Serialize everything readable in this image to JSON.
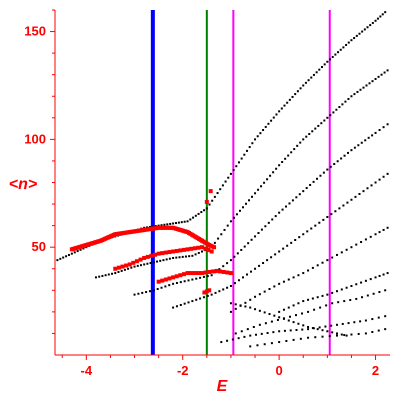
{
  "chart_data": {
    "type": "scatter",
    "xlabel": "E",
    "ylabel": "<n>",
    "xlim": [
      -4.65,
      2.3
    ],
    "ylim": [
      0,
      160
    ],
    "x_ticks": [
      -4,
      -2,
      0,
      2
    ],
    "y_ticks": [
      50,
      100,
      150
    ],
    "x_tick_labels": [
      "-4",
      "-2",
      "0",
      "2"
    ],
    "y_tick_labels": [
      "50",
      "100",
      "150"
    ],
    "grid": false,
    "colors": {
      "axis": "#ff0000",
      "labels": "#ff0000",
      "regular_points": "#000000",
      "highlighted_points": "#ff0000",
      "line_blue": "#0000ff",
      "line_green": "#008000",
      "line_magenta": "#ff00ff"
    },
    "vertical_lines": [
      {
        "x": -2.62,
        "color": "#0000ff",
        "style": "thick"
      },
      {
        "x": -1.5,
        "color": "#008000",
        "style": "medium"
      },
      {
        "x": -0.95,
        "color": "#ff00ff",
        "style": "medium"
      },
      {
        "x": 1.05,
        "color": "#ff00ff",
        "style": "medium"
      }
    ],
    "series": [
      {
        "color": "#000000",
        "marker": "dot",
        "curves": [
          {
            "points": [
              [
                -4.6,
                44
              ],
              [
                -4.3,
                47
              ],
              [
                -4.0,
                50
              ],
              [
                -3.7,
                53
              ],
              [
                -3.4,
                55
              ],
              [
                -3.1,
                57
              ],
              [
                -2.8,
                59
              ],
              [
                -2.5,
                60
              ],
              [
                -2.2,
                61
              ],
              [
                -1.9,
                62
              ],
              [
                -1.5,
                68
              ],
              [
                -1.0,
                84
              ],
              [
                -0.5,
                100
              ],
              [
                0.0,
                113
              ],
              [
                0.5,
                125
              ],
              [
                1.0,
                136
              ],
              [
                1.5,
                146
              ],
              [
                2.0,
                155
              ],
              [
                2.2,
                159
              ]
            ],
            "step": 0.055
          },
          {
            "points": [
              [
                -3.8,
                36
              ],
              [
                -3.4,
                38
              ],
              [
                -3.0,
                41
              ],
              [
                -2.6,
                43
              ],
              [
                -2.2,
                45
              ],
              [
                -1.8,
                46
              ],
              [
                -1.4,
                50
              ],
              [
                -1.0,
                62
              ],
              [
                -0.5,
                75
              ],
              [
                0.0,
                88
              ],
              [
                0.5,
                100
              ],
              [
                1.0,
                110
              ],
              [
                1.5,
                120
              ],
              [
                2.0,
                128
              ],
              [
                2.25,
                132
              ]
            ],
            "step": 0.065
          },
          {
            "points": [
              [
                -3.0,
                28
              ],
              [
                -2.6,
                30
              ],
              [
                -2.2,
                33
              ],
              [
                -1.8,
                35
              ],
              [
                -1.4,
                37
              ],
              [
                -1.0,
                44
              ],
              [
                -0.5,
                55
              ],
              [
                0.0,
                66
              ],
              [
                0.5,
                76
              ],
              [
                1.0,
                86
              ],
              [
                1.5,
                95
              ],
              [
                2.0,
                103
              ],
              [
                2.25,
                107
              ]
            ],
            "step": 0.075
          },
          {
            "points": [
              [
                -2.2,
                22
              ],
              [
                -1.8,
                25
              ],
              [
                -1.4,
                28
              ],
              [
                -1.0,
                32
              ],
              [
                -0.5,
                40
              ],
              [
                0.0,
                48
              ],
              [
                0.5,
                56
              ],
              [
                1.0,
                64
              ],
              [
                1.5,
                72
              ],
              [
                2.0,
                80
              ],
              [
                2.25,
                84
              ]
            ],
            "step": 0.085
          },
          {
            "points": [
              [
                -1.0,
                20
              ],
              [
                -0.5,
                27
              ],
              [
                0.0,
                33
              ],
              [
                0.5,
                38
              ],
              [
                1.0,
                44
              ],
              [
                1.5,
                50
              ],
              [
                2.0,
                56
              ],
              [
                2.25,
                59
              ]
            ],
            "step": 0.095
          },
          {
            "points": [
              [
                0.0,
                20
              ],
              [
                0.5,
                25
              ],
              [
                1.0,
                28
              ],
              [
                1.5,
                32
              ],
              [
                2.0,
                36
              ],
              [
                2.25,
                38
              ]
            ],
            "step": 0.1
          },
          {
            "points": [
              [
                -0.9,
                10
              ],
              [
                -0.4,
                14
              ],
              [
                0.1,
                17
              ],
              [
                0.6,
                20
              ],
              [
                1.1,
                24
              ],
              [
                1.6,
                26
              ],
              [
                2.2,
                30
              ]
            ],
            "step": 0.12
          },
          {
            "points": [
              [
                -1.2,
                6
              ],
              [
                -0.6,
                9
              ],
              [
                0.0,
                11
              ],
              [
                0.6,
                12
              ],
              [
                1.2,
                14
              ],
              [
                1.8,
                16
              ],
              [
                2.2,
                18
              ]
            ],
            "step": 0.13
          },
          {
            "points": [
              [
                -0.6,
                4
              ],
              [
                0.0,
                6
              ],
              [
                0.6,
                8
              ],
              [
                1.2,
                9
              ],
              [
                1.8,
                10
              ],
              [
                2.2,
                12
              ]
            ],
            "step": 0.14
          },
          {
            "points": [
              [
                -1.0,
                24
              ],
              [
                -0.6,
                22
              ],
              [
                -0.2,
                19
              ],
              [
                0.2,
                16
              ],
              [
                0.6,
                13
              ],
              [
                1.0,
                11
              ],
              [
                1.4,
                9
              ]
            ],
            "step": 0.1
          }
        ]
      },
      {
        "color": "#ff0000",
        "marker": "square",
        "curves": [
          {
            "points": [
              [
                -4.3,
                49
              ],
              [
                -4.0,
                51
              ],
              [
                -3.7,
                53
              ],
              [
                -3.4,
                56
              ],
              [
                -3.1,
                57
              ],
              [
                -2.8,
                58
              ],
              [
                -2.5,
                59
              ],
              [
                -2.2,
                59
              ],
              [
                -1.9,
                57
              ],
              [
                -1.6,
                53
              ],
              [
                -1.45,
                51
              ],
              [
                -1.35,
                50
              ]
            ],
            "step": 0.03
          },
          {
            "points": [
              [
                -3.4,
                40
              ],
              [
                -3.1,
                42
              ],
              [
                -2.8,
                45
              ],
              [
                -2.5,
                47
              ],
              [
                -2.2,
                48
              ],
              [
                -1.9,
                49
              ],
              [
                -1.6,
                50
              ],
              [
                -1.4,
                48
              ]
            ],
            "step": 0.07
          },
          {
            "points": [
              [
                -2.5,
                34
              ],
              [
                -2.2,
                36
              ],
              [
                -1.9,
                38
              ],
              [
                -1.6,
                38
              ],
              [
                -1.3,
                39
              ],
              [
                -1.0,
                38
              ]
            ],
            "step": 0.08
          },
          {
            "points": [
              [
                -1.55,
                29
              ],
              [
                -1.45,
                30
              ],
              [
                -1.5,
                71
              ],
              [
                -1.42,
                76
              ]
            ],
            "step": 0.06
          }
        ]
      }
    ]
  }
}
